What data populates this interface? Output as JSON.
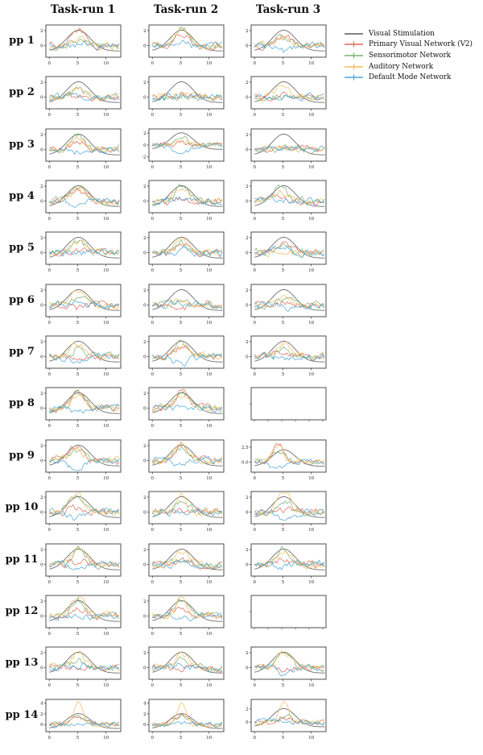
{
  "figure": {
    "background": "#ffffff"
  },
  "chart_data": {
    "type": "line",
    "layout": "small-multiples-grid",
    "columns": [
      "Task-run 1",
      "Task-run 2",
      "Task-run 3"
    ],
    "rows": [
      "pp 1",
      "pp 2",
      "pp 3",
      "pp 4",
      "pp 5",
      "pp 6",
      "pp 7",
      "pp 8",
      "pp 9",
      "pp 10",
      "pp 11",
      "pp 12",
      "pp 13",
      "pp 14"
    ],
    "legend": [
      {
        "label": "Visual Stimulation",
        "color": "#595959"
      },
      {
        "label": "Primary Visual Network (V2)",
        "color": "#e0695a"
      },
      {
        "label": "Sensorimotor Network",
        "color": "#7aae72"
      },
      {
        "label": "Auditory Network",
        "color": "#f2bb5e"
      },
      {
        "label": "Default Mode Network",
        "color": "#4aa5d8"
      }
    ],
    "legend_position": "upper right",
    "x_range": [
      -0.6,
      12.6
    ],
    "x_ticks": [
      0,
      5,
      10
    ],
    "x_tick_labels": [
      "0",
      "5",
      "10"
    ],
    "stimulus": {
      "baseline": -0.72,
      "amplitude": 2.78,
      "center": 5.15,
      "sigma": 2.05,
      "plot_color": "#6f6f6f"
    },
    "grid": false,
    "cells": [
      [
        {
          "seed": 11,
          "gains": [
            2.0,
            0.8,
            1.0,
            0.1
          ],
          "yticks": [
            0,
            2
          ],
          "ytick_labels": [
            "0",
            "2"
          ],
          "ylim": [
            -1.55,
            2.75
          ]
        },
        {
          "seed": 12,
          "gains": [
            1.8,
            2.2,
            2.4,
            0.3
          ],
          "yticks": [
            0,
            2
          ],
          "ytick_labels": [
            "0",
            "2"
          ],
          "ylim": [
            -1.55,
            2.75
          ]
        },
        {
          "seed": 13,
          "gains": [
            1.3,
            1.0,
            1.2,
            -0.8
          ],
          "yticks": [
            0,
            2
          ],
          "ytick_labels": [
            "0",
            "2"
          ],
          "ylim": [
            -1.55,
            2.75
          ]
        }
      ],
      [
        {
          "seed": 21,
          "gains": [
            0.5,
            0.9,
            0.9,
            0.1
          ],
          "yticks": [
            0,
            2
          ],
          "ytick_labels": [
            "0",
            "2"
          ],
          "ylim": [
            -1.55,
            2.75
          ]
        },
        {
          "seed": 22,
          "gains": [
            0.3,
            0.1,
            0.3,
            0.1
          ],
          "yticks": [
            0,
            2
          ],
          "ytick_labels": [
            "0",
            "2"
          ],
          "ylim": [
            -1.55,
            2.75
          ]
        },
        {
          "seed": 23,
          "gains": [
            0.3,
            0.2,
            1.5,
            0.2
          ],
          "yticks": [
            0,
            2
          ],
          "ytick_labels": [
            "0",
            "2"
          ],
          "ylim": [
            -1.55,
            2.75
          ]
        }
      ],
      [
        {
          "seed": 31,
          "gains": [
            1.2,
            1.8,
            1.5,
            -0.3
          ],
          "yticks": [
            0,
            2
          ],
          "ytick_labels": [
            "0",
            "2"
          ],
          "ylim": [
            -1.55,
            2.75
          ]
        },
        {
          "seed": 32,
          "gains": [
            0.2,
            1.5,
            0.8,
            -2.0
          ],
          "yticks": [
            -2,
            0,
            2
          ],
          "ytick_labels": [
            "-2",
            "0",
            "2"
          ],
          "ylim": [
            -2.7,
            2.7
          ]
        },
        {
          "seed": 33,
          "gains": [
            0.3,
            0.3,
            0.5,
            0.3
          ],
          "yticks": [
            0,
            2
          ],
          "ytick_labels": [
            "0",
            "2"
          ],
          "ylim": [
            -1.55,
            2.75
          ]
        }
      ],
      [
        {
          "seed": 41,
          "gains": [
            1.8,
            2.0,
            1.5,
            -0.5
          ],
          "yticks": [
            0,
            2
          ],
          "ytick_labels": [
            "0",
            "2"
          ],
          "ylim": [
            -1.55,
            2.75
          ]
        },
        {
          "seed": 42,
          "gains": [
            0.4,
            1.8,
            2.0,
            0.2
          ],
          "yticks": [
            0,
            2
          ],
          "ytick_labels": [
            "0",
            "2"
          ],
          "ylim": [
            -1.55,
            2.75
          ]
        },
        {
          "seed": 43,
          "gains": [
            0.9,
            2.0,
            1.0,
            0.3
          ],
          "shift": -0.7,
          "yticks": [
            0,
            2
          ],
          "ytick_labels": [
            "0",
            "2"
          ],
          "ylim": [
            -1.55,
            2.75
          ]
        }
      ],
      [
        {
          "seed": 51,
          "gains": [
            0.3,
            1.5,
            1.8,
            -0.2
          ],
          "yticks": [
            0,
            2
          ],
          "ytick_labels": [
            "0",
            "2"
          ],
          "ylim": [
            -1.55,
            2.75
          ]
        },
        {
          "seed": 52,
          "gains": [
            0.8,
            1.2,
            2.2,
            0.2
          ],
          "yticks": [
            0,
            2
          ],
          "ytick_labels": [
            "0",
            "2"
          ],
          "ylim": [
            -1.55,
            2.75
          ]
        },
        {
          "seed": 53,
          "gains": [
            1.2,
            0.9,
            -0.3,
            1.0
          ],
          "yticks": [
            0,
            2
          ],
          "ytick_labels": [
            "0",
            "2"
          ],
          "ylim": [
            -1.55,
            2.75
          ]
        }
      ],
      [
        {
          "seed": 61,
          "gains": [
            -0.4,
            1.2,
            1.8,
            0.1
          ],
          "yticks": [
            0,
            2
          ],
          "ytick_labels": [
            "0",
            "2"
          ],
          "ylim": [
            -1.55,
            2.75
          ]
        },
        {
          "seed": 62,
          "gains": [
            -0.5,
            0.7,
            0.6,
            0.5
          ],
          "yticks": [
            0,
            2
          ],
          "ytick_labels": [
            "0",
            "2"
          ],
          "ylim": [
            -1.55,
            2.75
          ]
        },
        {
          "seed": 63,
          "gains": [
            0.6,
            0.9,
            1.2,
            -0.4
          ],
          "yticks": [
            0,
            2
          ],
          "ytick_labels": [
            "0",
            "2"
          ],
          "ylim": [
            -1.55,
            2.75
          ]
        }
      ],
      [
        {
          "seed": 71,
          "gains": [
            0.2,
            1.0,
            1.4,
            -0.3
          ],
          "yticks": [
            0,
            2
          ],
          "ytick_labels": [
            "0",
            "2"
          ],
          "ylim": [
            -1.55,
            2.75
          ]
        },
        {
          "seed": 72,
          "gains": [
            1.2,
            1.8,
            1.6,
            -1.2
          ],
          "yticks": [
            0,
            2
          ],
          "ytick_labels": [
            "0",
            "2"
          ],
          "ylim": [
            -1.55,
            2.75
          ]
        },
        {
          "seed": 73,
          "gains": [
            0.4,
            1.0,
            1.8,
            -0.4
          ],
          "yticks": [
            0,
            2
          ],
          "ytick_labels": [
            "0",
            "2"
          ],
          "ylim": [
            -1.55,
            2.75
          ]
        }
      ],
      [
        {
          "seed": 81,
          "gains": [
            2.2,
            1.9,
            1.7,
            -0.4
          ],
          "yticks": [
            0,
            2
          ],
          "ytick_labels": [
            "0",
            "2"
          ],
          "ylim": [
            -1.55,
            2.75
          ]
        },
        {
          "seed": 82,
          "gains": [
            2.2,
            1.9,
            1.6,
            0.3
          ],
          "yticks": [
            0,
            2
          ],
          "ytick_labels": [
            "0",
            "2"
          ],
          "ylim": [
            -1.55,
            2.75
          ]
        },
        {
          "empty": true
        }
      ],
      [
        {
          "seed": 91,
          "gains": [
            1.8,
            1.1,
            1.3,
            -1.0
          ],
          "shift": -0.4,
          "yticks": [
            0,
            2
          ],
          "ytick_labels": [
            "0",
            "2"
          ],
          "ylim": [
            -1.55,
            2.75
          ]
        },
        {
          "seed": 92,
          "gains": [
            2.0,
            1.8,
            2.2,
            -0.6
          ],
          "yticks": [
            0,
            2
          ],
          "ytick_labels": [
            "0",
            "2"
          ],
          "ylim": [
            -1.55,
            2.75
          ]
        },
        {
          "seed": 93,
          "gains": [
            3.0,
            2.0,
            2.8,
            -1.0
          ],
          "shift": -1.0,
          "yticks": [
            0,
            2.5
          ],
          "ytick_labels": [
            "0.0",
            "2.5"
          ],
          "ylim": [
            -1.7,
            3.7
          ]
        }
      ],
      [
        {
          "seed": 101,
          "gains": [
            0.5,
            2.0,
            2.5,
            -1.0
          ],
          "shift": -0.4,
          "yticks": [
            0,
            2
          ],
          "ytick_labels": [
            "0",
            "2"
          ],
          "ylim": [
            -1.55,
            2.75
          ]
        },
        {
          "seed": 102,
          "gains": [
            0.3,
            1.4,
            2.8,
            0.1
          ],
          "yticks": [
            0,
            2
          ],
          "ytick_labels": [
            "0",
            "2"
          ],
          "ylim": [
            -1.55,
            2.75
          ]
        },
        {
          "seed": 103,
          "gains": [
            0.2,
            1.3,
            2.5,
            -0.8
          ],
          "yticks": [
            0,
            2
          ],
          "ytick_labels": [
            "0",
            "2"
          ],
          "ylim": [
            -1.55,
            2.75
          ]
        }
      ],
      [
        {
          "seed": 111,
          "gains": [
            0.3,
            1.8,
            2.4,
            -0.5
          ],
          "yticks": [
            0,
            2
          ],
          "ytick_labels": [
            "0",
            "2"
          ],
          "ylim": [
            -1.55,
            2.75
          ]
        },
        {
          "seed": 112,
          "gains": [
            0.4,
            0.6,
            1.8,
            0.3
          ],
          "yticks": [
            0,
            2
          ],
          "ytick_labels": [
            "0",
            "2"
          ],
          "ylim": [
            -1.55,
            2.75
          ]
        },
        {
          "seed": 113,
          "gains": [
            0.8,
            2.2,
            1.4,
            -0.3
          ],
          "yticks": [
            0,
            2
          ],
          "ytick_labels": [
            "0",
            "2"
          ],
          "ylim": [
            -1.55,
            2.75
          ]
        }
      ],
      [
        {
          "seed": 121,
          "gains": [
            1.2,
            1.9,
            2.4,
            -0.2
          ],
          "yticks": [
            0,
            2
          ],
          "ytick_labels": [
            "0",
            "2"
          ],
          "ylim": [
            -1.55,
            2.75
          ]
        },
        {
          "seed": 122,
          "gains": [
            1.3,
            2.0,
            2.6,
            -0.2
          ],
          "yticks": [
            0,
            2
          ],
          "ytick_labels": [
            "0",
            "2"
          ],
          "ylim": [
            -1.55,
            2.75
          ]
        },
        {
          "empty": true
        }
      ],
      [
        {
          "seed": 131,
          "gains": [
            0.1,
            1.0,
            1.9,
            0.4
          ],
          "yticks": [
            0,
            2
          ],
          "ytick_labels": [
            "0",
            "2"
          ],
          "ylim": [
            -1.55,
            2.75
          ]
        },
        {
          "seed": 132,
          "gains": [
            -0.2,
            1.0,
            1.7,
            0.4
          ],
          "yticks": [
            0,
            2
          ],
          "ytick_labels": [
            "0",
            "2"
          ],
          "ylim": [
            -1.55,
            2.75
          ]
        },
        {
          "seed": 133,
          "gains": [
            -0.5,
            1.9,
            2.3,
            -0.8
          ],
          "yticks": [
            0,
            2
          ],
          "ytick_labels": [
            "0",
            "2"
          ],
          "ylim": [
            -1.55,
            2.75
          ]
        }
      ],
      [
        {
          "seed": 141,
          "gains": [
            1.5,
            2.0,
            4.0,
            0.2
          ],
          "yticks": [
            0,
            2,
            4
          ],
          "ytick_labels": [
            "0",
            "2",
            "4"
          ],
          "ylim": [
            -1.3,
            4.7
          ]
        },
        {
          "seed": 142,
          "gains": [
            1.6,
            1.8,
            4.0,
            0.2
          ],
          "yticks": [
            0,
            2,
            4
          ],
          "ytick_labels": [
            "0",
            "2",
            "4"
          ],
          "ylim": [
            -1.3,
            4.7
          ]
        },
        {
          "seed": 143,
          "gains": [
            0.8,
            1.0,
            3.0,
            0.3
          ],
          "yticks": [
            0,
            2
          ],
          "ytick_labels": [
            "0",
            "2"
          ],
          "ylim": [
            -1.45,
            3.45
          ]
        }
      ]
    ]
  }
}
